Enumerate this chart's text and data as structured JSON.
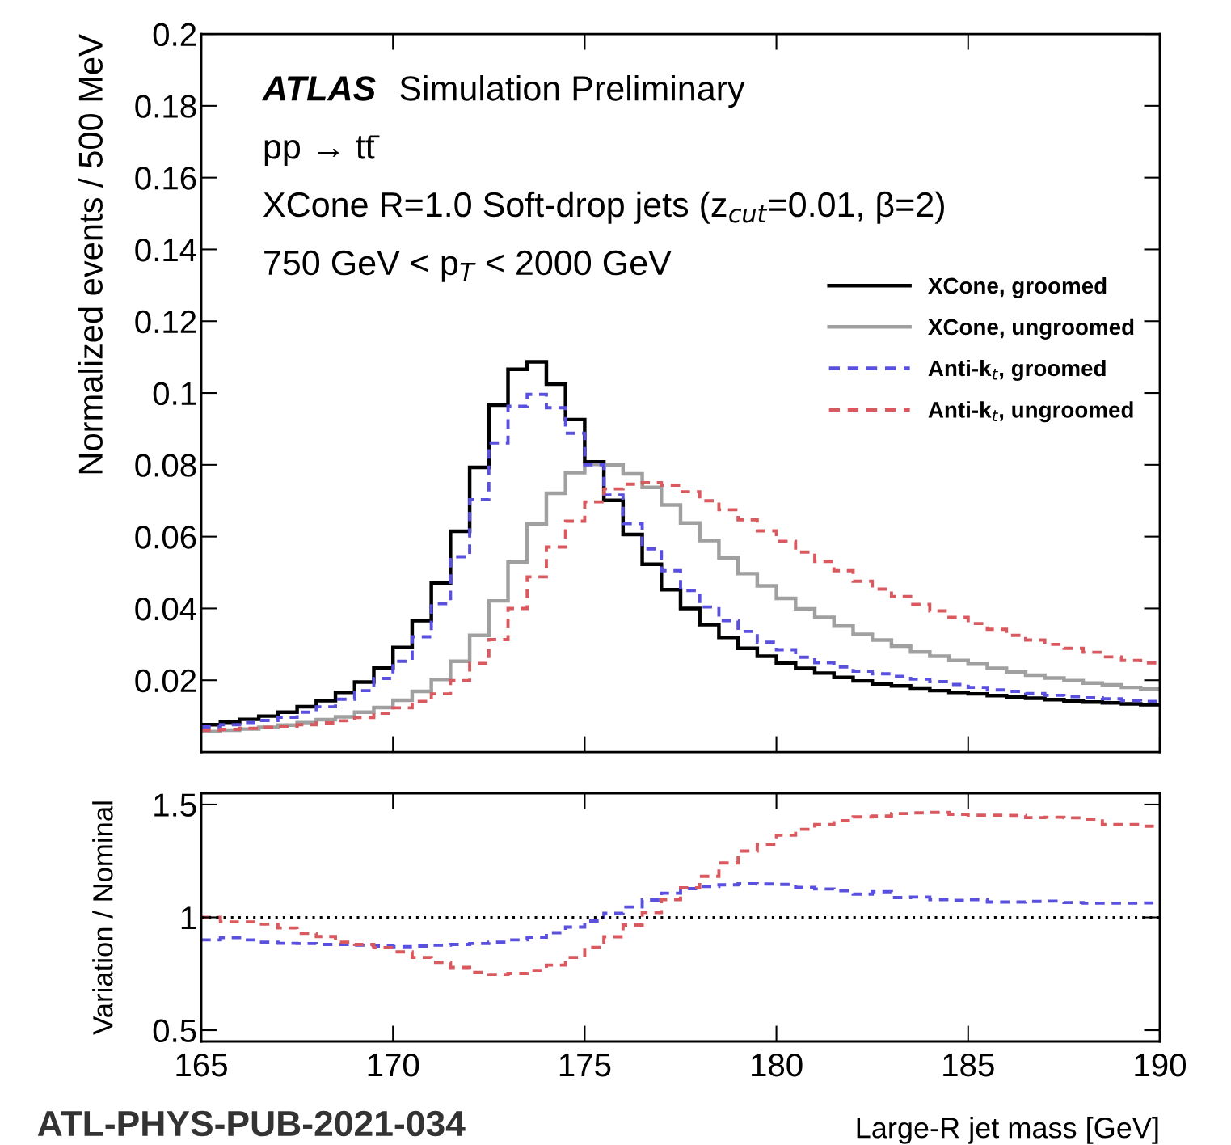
{
  "chart_data": [
    {
      "type": "histogram",
      "bins": [
        165,
        165.5,
        166,
        166.5,
        167,
        167.5,
        168,
        168.5,
        169,
        169.5,
        170,
        170.5,
        171,
        171.5,
        172,
        172.5,
        173,
        173.5,
        174,
        174.5,
        175,
        175.5,
        176,
        176.5,
        177,
        177.5,
        178,
        178.5,
        179,
        179.5,
        180,
        180.5,
        181,
        181.5,
        182,
        182.5,
        183,
        183.5,
        184,
        184.5,
        185,
        185.5,
        186,
        186.5,
        187,
        187.5,
        188,
        188.5,
        189,
        189.5,
        190
      ],
      "series": [
        {
          "name": "XCone, groomed",
          "color": "#000000",
          "line_style": "solid",
          "values": [
            0.0076,
            0.0083,
            0.0091,
            0.01,
            0.0111,
            0.0126,
            0.0143,
            0.0166,
            0.0195,
            0.0234,
            0.0291,
            0.0366,
            0.0471,
            0.0615,
            0.0793,
            0.0966,
            0.1066,
            0.1087,
            0.1025,
            0.0926,
            0.0808,
            0.0701,
            0.0606,
            0.0523,
            0.0452,
            0.04,
            0.0355,
            0.0319,
            0.0289,
            0.0267,
            0.0248,
            0.0233,
            0.022,
            0.0208,
            0.0198,
            0.019,
            0.0184,
            0.0178,
            0.0171,
            0.0166,
            0.0162,
            0.0157,
            0.0154,
            0.015,
            0.0146,
            0.0142,
            0.0139,
            0.0137,
            0.0134,
            0.0132
          ]
        },
        {
          "name": "XCone, ungroomed",
          "color": "#a0a0a0",
          "line_style": "solid",
          "values": [
            0.0057,
            0.0061,
            0.0064,
            0.0069,
            0.0075,
            0.0082,
            0.009,
            0.0098,
            0.0111,
            0.0124,
            0.0144,
            0.0169,
            0.0202,
            0.0253,
            0.0325,
            0.0421,
            0.0529,
            0.0636,
            0.0721,
            0.0778,
            0.0801,
            0.08,
            0.0775,
            0.0737,
            0.0688,
            0.0638,
            0.0589,
            0.0541,
            0.0497,
            0.0463,
            0.0428,
            0.0399,
            0.0375,
            0.0351,
            0.0328,
            0.0312,
            0.0295,
            0.0279,
            0.0267,
            0.0255,
            0.0245,
            0.0233,
            0.0223,
            0.0214,
            0.0206,
            0.0199,
            0.0192,
            0.0187,
            0.018,
            0.0175
          ]
        },
        {
          "name": "Anti-k$_{t}$, groomed",
          "color": "#5a50e0",
          "line_style": "dashed",
          "values": [
            0.007,
            0.0076,
            0.0082,
            0.0088,
            0.0097,
            0.0111,
            0.0126,
            0.0147,
            0.0171,
            0.0205,
            0.0253,
            0.0321,
            0.0413,
            0.0544,
            0.0703,
            0.0861,
            0.0963,
            0.0996,
            0.0959,
            0.0888,
            0.08,
            0.0716,
            0.0636,
            0.0566,
            0.0505,
            0.045,
            0.0404,
            0.0366,
            0.0336,
            0.0306,
            0.0285,
            0.0264,
            0.0249,
            0.0237,
            0.0225,
            0.0218,
            0.0211,
            0.0203,
            0.0196,
            0.0188,
            0.018,
            0.0173,
            0.0169,
            0.0163,
            0.0158,
            0.0154,
            0.0151,
            0.0148,
            0.0143,
            0.0141
          ]
        },
        {
          "name": "Anti-k$_{t}$, ungroomed",
          "color": "#d9595f",
          "line_style": "dashed",
          "values": [
            0.0061,
            0.0063,
            0.0066,
            0.0069,
            0.0072,
            0.0076,
            0.0081,
            0.0087,
            0.0096,
            0.0108,
            0.0123,
            0.0141,
            0.0162,
            0.0199,
            0.0247,
            0.0313,
            0.04,
            0.0488,
            0.0571,
            0.0643,
            0.0697,
            0.0733,
            0.0746,
            0.075,
            0.0743,
            0.0725,
            0.07,
            0.0675,
            0.0647,
            0.0616,
            0.0587,
            0.0557,
            0.0531,
            0.0505,
            0.0476,
            0.0454,
            0.0433,
            0.0411,
            0.0393,
            0.0375,
            0.0358,
            0.0342,
            0.0325,
            0.0312,
            0.03,
            0.0289,
            0.0278,
            0.0265,
            0.0255,
            0.0248
          ]
        }
      ],
      "xlim": [
        165,
        190
      ],
      "xticks": [
        165,
        170,
        175,
        180,
        185,
        190
      ],
      "ylim": [
        0,
        0.2
      ],
      "yticks": [
        0.02,
        0.04,
        0.06,
        0.08,
        0.1,
        0.12,
        0.14,
        0.16,
        0.18,
        0.2
      ],
      "ylabel": "Normalized events / 500 MeV",
      "annotations": [
        "ATLAS",
        "Simulation Preliminary",
        "pp → tt̄",
        "XCone R=1.0 Soft-drop jets (z$_{cut}$=0.01, β=2)",
        "750 GeV < p$_{T}$ < 2000 GeV"
      ],
      "legend": "right",
      "tick_labels": "y"
    },
    {
      "type": "histogram",
      "bins": [
        165,
        165.5,
        166,
        166.5,
        167,
        167.5,
        168,
        168.5,
        169,
        169.5,
        170,
        170.5,
        171,
        171.5,
        172,
        172.5,
        173,
        173.5,
        174,
        174.5,
        175,
        175.5,
        176,
        176.5,
        177,
        177.5,
        178,
        178.5,
        179,
        179.5,
        180,
        180.5,
        181,
        181.5,
        182,
        182.5,
        183,
        183.5,
        184,
        184.5,
        185,
        185.5,
        186,
        186.5,
        187,
        187.5,
        188,
        188.5,
        189,
        189.5,
        190
      ],
      "series": [
        {
          "color": "#5a50e0",
          "line_style": "dashed",
          "values": [
            0.9,
            0.91,
            0.9,
            0.89,
            0.885,
            0.884,
            0.88,
            0.88,
            0.877,
            0.873,
            0.87,
            0.873,
            0.877,
            0.88,
            0.884,
            0.89,
            0.9,
            0.912,
            0.932,
            0.957,
            0.984,
            1.018,
            1.046,
            1.077,
            1.107,
            1.127,
            1.137,
            1.144,
            1.149,
            1.148,
            1.146,
            1.133,
            1.126,
            1.118,
            1.103,
            1.114,
            1.088,
            1.09,
            1.079,
            1.075,
            1.079,
            1.068,
            1.068,
            1.071,
            1.072,
            1.066,
            1.063,
            1.063,
            1.063,
            1.064
          ]
        },
        {
          "color": "#d9595f",
          "line_style": "dashed",
          "values": [
            1.0,
            0.98,
            0.98,
            0.97,
            0.953,
            0.929,
            0.915,
            0.89,
            0.88,
            0.866,
            0.847,
            0.822,
            0.8,
            0.778,
            0.756,
            0.747,
            0.751,
            0.765,
            0.788,
            0.822,
            0.867,
            0.914,
            0.966,
            1.021,
            1.079,
            1.131,
            1.182,
            1.241,
            1.294,
            1.324,
            1.364,
            1.39,
            1.411,
            1.428,
            1.445,
            1.449,
            1.46,
            1.463,
            1.465,
            1.457,
            1.453,
            1.453,
            1.452,
            1.442,
            1.444,
            1.441,
            1.435,
            1.411,
            1.411,
            1.404
          ]
        }
      ],
      "xlim": [
        165,
        190
      ],
      "xticks": [
        165,
        170,
        175,
        180,
        185,
        190
      ],
      "ylim": [
        0.45,
        1.55
      ],
      "yticks": [
        0.5,
        1,
        1.5
      ],
      "xlabel": "Large-R jet mass [GeV]",
      "ylabel": "Variation / Nominal",
      "ref_lines": [
        {
          "axis": "y",
          "value": 1,
          "color": "#000000",
          "line_style": "dotted"
        }
      ],
      "annotations": [
        "ATL-PHYS-PUB-2021-034"
      ]
    }
  ]
}
